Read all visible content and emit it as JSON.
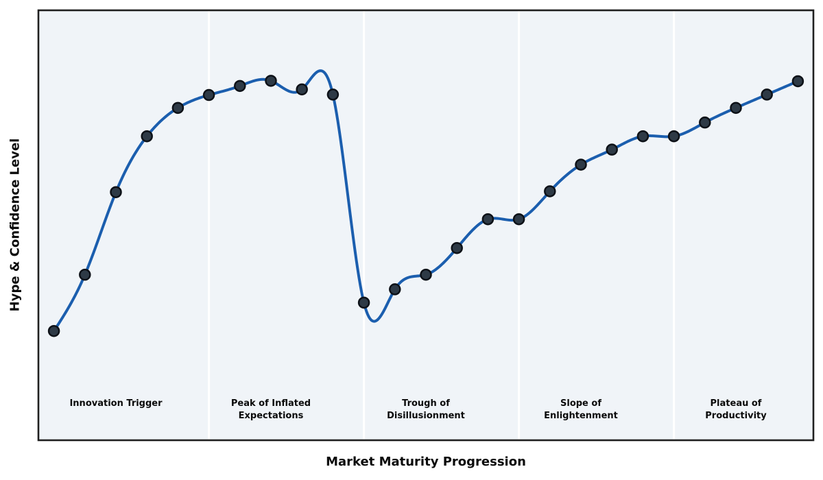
{
  "chart_data": {
    "type": "line",
    "title": "",
    "xlabel": "Market Maturity Progression",
    "ylabel": "Hype & Confidence Level",
    "x": [
      1,
      2,
      3,
      4,
      5,
      6,
      7,
      8,
      9,
      10,
      11,
      12,
      13,
      14,
      15,
      16,
      17,
      18,
      19,
      20,
      21,
      22,
      23,
      24,
      25
    ],
    "hype_values": [
      25.4,
      38.5,
      57.7,
      70.7,
      77.3,
      80.3,
      82.4,
      83.6,
      81.6,
      80.4,
      32.0,
      35.1,
      38.5,
      44.7,
      51.4,
      51.4,
      57.9,
      64.1,
      67.6,
      70.7,
      70.7,
      73.9,
      77.3,
      80.4,
      83.5
    ],
    "xlim": [
      0.5,
      25.5
    ],
    "ylim": [
      0,
      100
    ],
    "grid": false,
    "legend": "none",
    "curve_style": "smooth-cubic-spline-through-points",
    "phases": [
      {
        "label": "Innovation Trigger",
        "center_x": 3
      },
      {
        "label": "Peak of Inflated\nExpectations",
        "center_x": 8
      },
      {
        "label": "Trough of\nDisillusionment",
        "center_x": 13
      },
      {
        "label": "Slope of\nEnlightenment",
        "center_x": 18
      },
      {
        "label": "Plateau of\nProductivity",
        "center_x": 23
      }
    ],
    "phase_divider_x": [
      6,
      11,
      16,
      21
    ],
    "colors": {
      "line": "#1b5eae",
      "point_fill": "#2e3a46",
      "point_stroke": "#0d1117",
      "plot_background": "#f0f4f8",
      "divider": "#ffffff",
      "border": "#1f1f1f",
      "text": "#0a0a0a"
    }
  }
}
